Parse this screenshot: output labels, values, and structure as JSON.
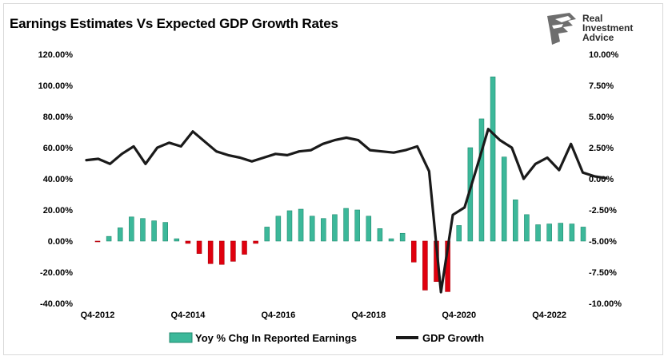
{
  "header": {
    "title": "Earnings Estimates Vs Expected GDP Growth Rates",
    "logo_line1": "Real",
    "logo_line2": "Investment",
    "logo_line3": "Advice"
  },
  "chart_data": {
    "type": "bar",
    "title": "Earnings Estimates Vs Expected GDP Growth Rates",
    "x_tick_labels": [
      "Q4-2012",
      "Q4-2014",
      "Q4-2016",
      "Q4-2018",
      "Q4-2020",
      "Q4-2022"
    ],
    "y_left": {
      "min": -40,
      "max": 120,
      "step": 20,
      "tick_labels": [
        "120.00%",
        "100.00%",
        "80.00%",
        "60.00%",
        "40.00%",
        "20.00%",
        "0.00%",
        "-20.00%",
        "-40.00%"
      ]
    },
    "y_right": {
      "min": -10,
      "max": 10,
      "step": 2.5,
      "tick_labels": [
        "10.00%",
        "7.50%",
        "5.00%",
        "2.50%",
        "0.00%",
        "-2.50%",
        "-5.00%",
        "-7.50%",
        "-10.00%"
      ]
    },
    "legend_position": "bottom",
    "series": [
      {
        "name": "Yoy % Chg In Reported Earnings",
        "kind": "bar",
        "axis": "left",
        "positive_color": "#3cb89a",
        "negative_color": "#e0000e",
        "values": [
          -0.5,
          3,
          8.5,
          15.5,
          14.5,
          13,
          12,
          1.5,
          -1.5,
          -8,
          -14.5,
          -15,
          -13,
          -8.5,
          -1.5,
          9,
          16,
          19.5,
          20.5,
          16,
          14.5,
          17,
          21,
          20,
          16,
          8,
          1.5,
          5,
          -13.5,
          -31.5,
          -26,
          -32.5,
          10,
          60,
          78.5,
          105.5,
          54,
          26.5,
          17,
          10.5,
          11,
          11.5,
          11,
          9
        ]
      },
      {
        "name": "GDP Growth",
        "kind": "line",
        "axis": "right",
        "color": "#1a1a1a",
        "values": [
          1.5,
          1.6,
          1.2,
          2.0,
          2.6,
          1.2,
          2.5,
          2.9,
          2.6,
          3.8,
          3.0,
          2.2,
          1.9,
          1.7,
          1.4,
          1.7,
          2.0,
          1.9,
          2.2,
          2.3,
          2.8,
          3.1,
          3.3,
          3.1,
          2.3,
          2.2,
          2.1,
          2.3,
          2.6,
          0.6,
          -9.1,
          -2.9,
          -2.3,
          0.8,
          4.0,
          3.1,
          2.5,
          0.0,
          1.2,
          1.7,
          0.7,
          2.8,
          0.5,
          0.2,
          0.05
        ]
      }
    ]
  }
}
